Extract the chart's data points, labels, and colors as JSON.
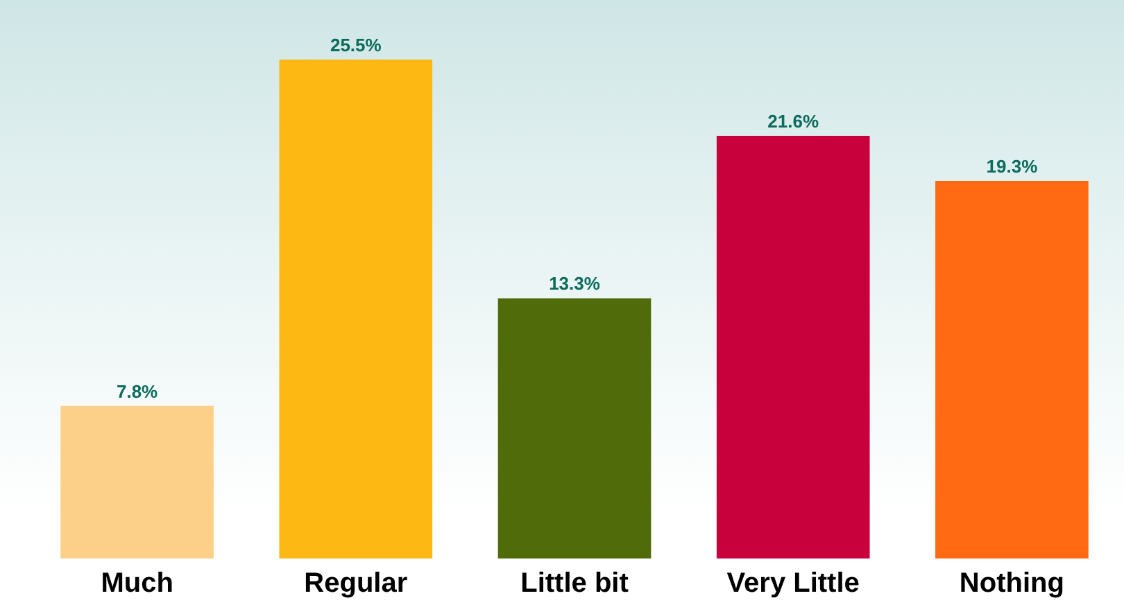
{
  "chart_data": {
    "type": "bar",
    "categories": [
      "Much",
      "Regular",
      "Little bit",
      "Very Little",
      "Nothing"
    ],
    "values": [
      7.8,
      25.5,
      13.3,
      21.6,
      19.3
    ],
    "colors": [
      "#fdd08a",
      "#fdb813",
      "#4f6b0a",
      "#c8003c",
      "#ff6a13"
    ],
    "value_labels": [
      "7.8%",
      "25.5%",
      "13.3%",
      "21.6%",
      "19.3%"
    ]
  }
}
